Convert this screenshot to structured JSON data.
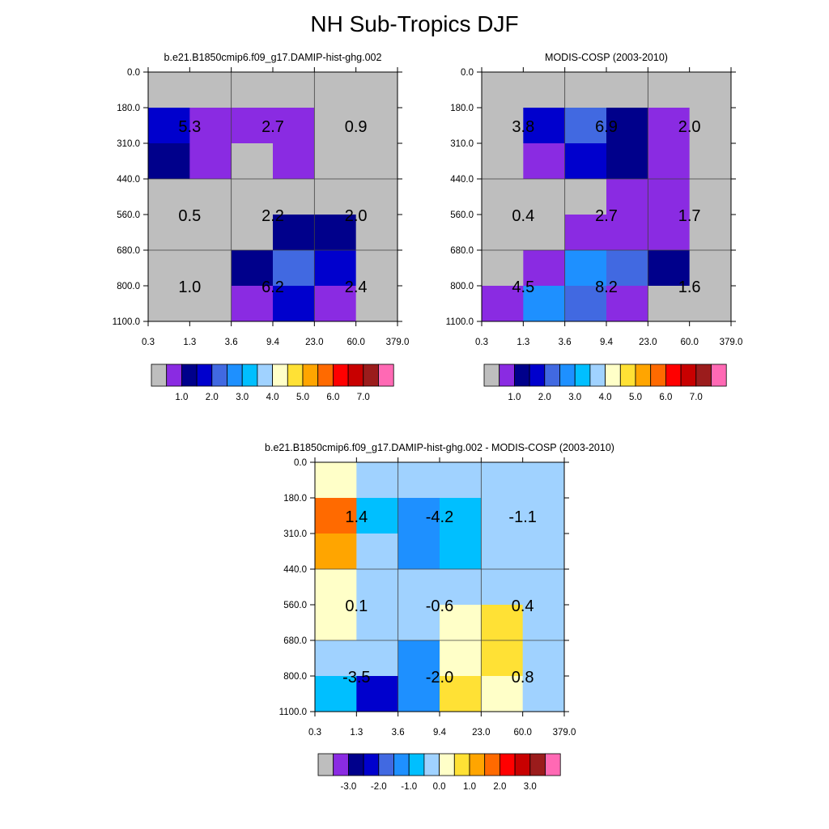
{
  "figure": {
    "title": "NH Sub-Tropics DJF"
  },
  "palette": {
    "abs": [
      "#bebebe",
      "#8a2be2",
      "#00008b",
      "#0000cd",
      "#4169e1",
      "#1e90ff",
      "#00bfff",
      "#a0d2ff",
      "#ffffc8",
      "#ffe135",
      "#ffa500",
      "#ff6a00",
      "#ff0000",
      "#c80000",
      "#9b1c1c",
      "#ff69b4"
    ],
    "diff": [
      "#bebebe",
      "#8a2be2",
      "#00008b",
      "#0000cd",
      "#4169e1",
      "#1e90ff",
      "#00bfff",
      "#a0d2ff",
      "#ffffc8",
      "#ffe135",
      "#ffa500",
      "#ff6a00",
      "#ff0000",
      "#c80000",
      "#9b1c1c",
      "#ff69b4"
    ],
    "grid": "#404040"
  },
  "chart_data": [
    {
      "type": "heatmap",
      "title": "b.e21.B1850cmip6.f09_g17.DAMIP-hist-ghg.002",
      "x_ticks": [
        "0.3",
        "1.3",
        "3.6",
        "9.4",
        "23.0",
        "60.0",
        "379.0"
      ],
      "y_ticks": [
        "0.0",
        "180.0",
        "310.0",
        "440.0",
        "560.0",
        "680.0",
        "800.0",
        "1100.0"
      ],
      "cell_levels": [
        [
          0,
          0,
          0,
          0,
          0,
          0
        ],
        [
          3,
          1,
          1,
          1,
          0,
          0
        ],
        [
          2,
          1,
          0,
          1,
          0,
          0
        ],
        [
          0,
          0,
          0,
          0,
          0,
          0
        ],
        [
          0,
          0,
          0,
          2,
          2,
          0
        ],
        [
          0,
          0,
          2,
          4,
          3,
          0
        ],
        [
          0,
          0,
          1,
          3,
          1,
          0
        ]
      ],
      "group_labels": [
        [
          "5.3",
          "2.7",
          "0.9"
        ],
        [
          "0.5",
          "2.2",
          "2.0"
        ],
        [
          "1.0",
          "6.2",
          "2.4"
        ]
      ],
      "colorbar": {
        "palette": "abs",
        "tick_labels": [
          "1.0",
          "2.0",
          "3.0",
          "4.0",
          "5.0",
          "6.0",
          "7.0"
        ]
      }
    },
    {
      "type": "heatmap",
      "title": "MODIS-COSP (2003-2010)",
      "x_ticks": [
        "0.3",
        "1.3",
        "3.6",
        "9.4",
        "23.0",
        "60.0",
        "379.0"
      ],
      "y_ticks": [
        "0.0",
        "180.0",
        "310.0",
        "440.0",
        "560.0",
        "680.0",
        "800.0",
        "1100.0"
      ],
      "cell_levels": [
        [
          0,
          0,
          0,
          0,
          0,
          0
        ],
        [
          0,
          3,
          4,
          2,
          1,
          0
        ],
        [
          0,
          1,
          3,
          2,
          1,
          0
        ],
        [
          0,
          0,
          0,
          1,
          1,
          0
        ],
        [
          0,
          0,
          1,
          1,
          1,
          0
        ],
        [
          0,
          1,
          5,
          4,
          2,
          0
        ],
        [
          1,
          5,
          4,
          1,
          0,
          0
        ]
      ],
      "group_labels": [
        [
          "3.8",
          "6.9",
          "2.0"
        ],
        [
          "0.4",
          "2.7",
          "1.7"
        ],
        [
          "4.5",
          "8.2",
          "1.6"
        ]
      ],
      "colorbar": {
        "palette": "abs",
        "tick_labels": [
          "1.0",
          "2.0",
          "3.0",
          "4.0",
          "5.0",
          "6.0",
          "7.0"
        ]
      }
    },
    {
      "type": "heatmap",
      "title": "b.e21.B1850cmip6.f09_g17.DAMIP-hist-ghg.002 - MODIS-COSP (2003-2010)",
      "x_ticks": [
        "0.3",
        "1.3",
        "3.6",
        "9.4",
        "23.0",
        "60.0",
        "379.0"
      ],
      "y_ticks": [
        "0.0",
        "180.0",
        "310.0",
        "440.0",
        "560.0",
        "680.0",
        "800.0",
        "1100.0"
      ],
      "cell_levels": [
        [
          8,
          7,
          7,
          7,
          7,
          7
        ],
        [
          11,
          6,
          5,
          6,
          7,
          7
        ],
        [
          10,
          7,
          5,
          6,
          7,
          7
        ],
        [
          8,
          7,
          7,
          7,
          7,
          7
        ],
        [
          8,
          7,
          7,
          8,
          9,
          7
        ],
        [
          7,
          7,
          5,
          8,
          9,
          7
        ],
        [
          6,
          3,
          5,
          9,
          8,
          7
        ]
      ],
      "group_labels": [
        [
          "1.4",
          "-4.2",
          "-1.1"
        ],
        [
          "0.1",
          "-0.6",
          "0.4"
        ],
        [
          "-3.5",
          "-2.0",
          "0.8"
        ]
      ],
      "colorbar": {
        "palette": "diff",
        "tick_labels": [
          "-3.0",
          "-2.0",
          "-1.0",
          "0.0",
          "1.0",
          "2.0",
          "3.0"
        ]
      }
    }
  ]
}
